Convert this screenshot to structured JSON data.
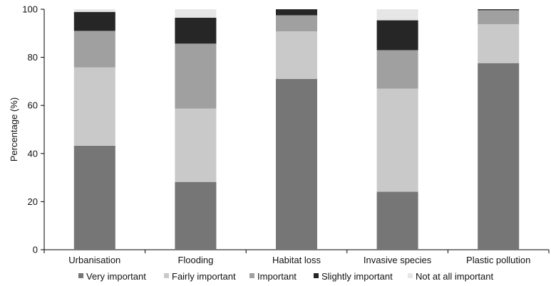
{
  "chart_data": {
    "type": "bar",
    "stacked": true,
    "title": "",
    "xlabel": "",
    "ylabel": "Percentage (%)",
    "ylim": [
      0,
      100
    ],
    "yticks": [
      0,
      20,
      40,
      60,
      80,
      100
    ],
    "grid": false,
    "legend_position": "bottom",
    "categories": [
      "Urbanisation",
      "Flooding",
      "Habitat loss",
      "Invasive species",
      "Plastic pollution"
    ],
    "series": [
      {
        "name": "Very important",
        "color": "#767676",
        "values": [
          43.2,
          28.2,
          71.0,
          24.1,
          77.6
        ]
      },
      {
        "name": "Fairly important",
        "color": "#c9c9c9",
        "values": [
          32.6,
          30.5,
          19.8,
          42.9,
          16.2
        ]
      },
      {
        "name": "Important",
        "color": "#a0a0a0",
        "values": [
          15.2,
          27.0,
          6.7,
          16.0,
          5.8
        ]
      },
      {
        "name": "Slightly important",
        "color": "#262626",
        "values": [
          7.9,
          10.8,
          2.5,
          12.4,
          0.4
        ]
      },
      {
        "name": "Not at all important",
        "color": "#e6e6e6",
        "values": [
          1.1,
          3.5,
          0.0,
          4.6,
          0.0
        ]
      }
    ]
  }
}
